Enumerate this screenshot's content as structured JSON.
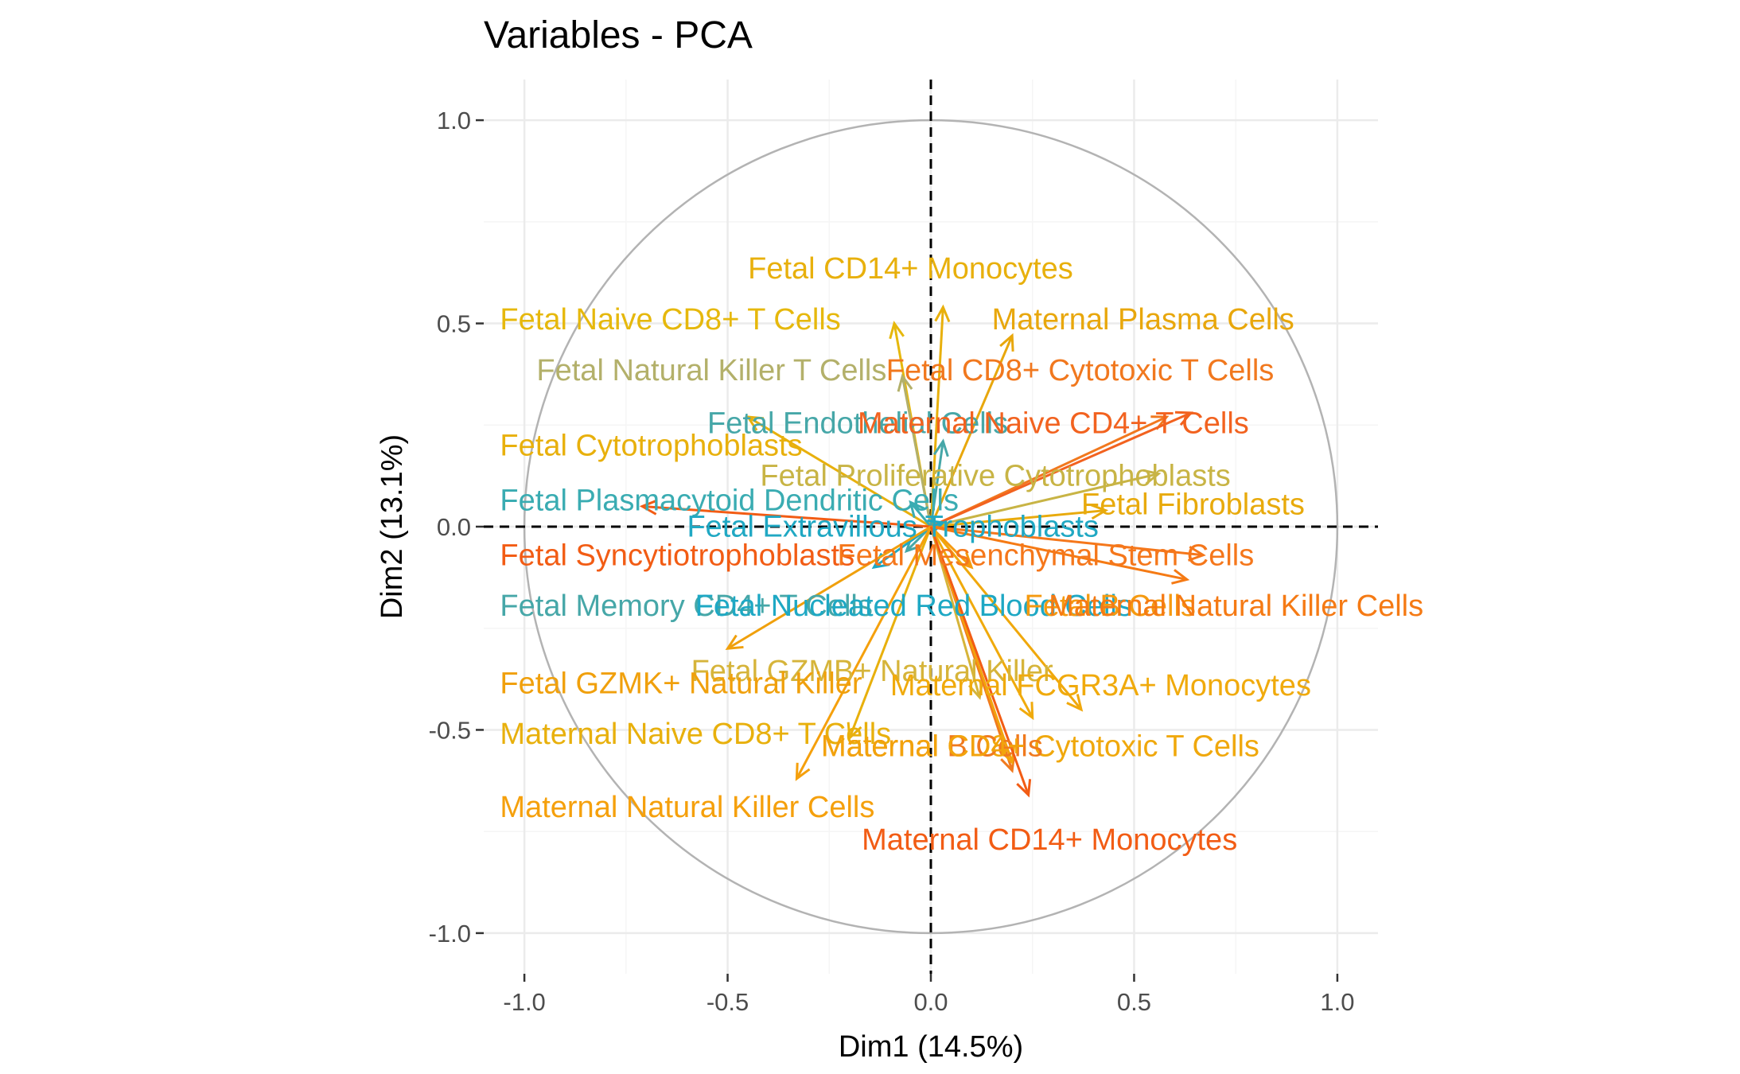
{
  "chart_data": {
    "type": "scatter",
    "title": "Variables - PCA",
    "xlabel": "Dim1 (14.5%)",
    "ylabel": "Dim2 (13.1%)",
    "xlim": [
      -1.1,
      1.1
    ],
    "ylim": [
      -1.1,
      1.1
    ],
    "x_ticks": [
      -1.0,
      -0.5,
      0.0,
      0.5,
      1.0
    ],
    "y_ticks": [
      -1.0,
      -0.5,
      0.0,
      0.5,
      1.0
    ],
    "x_tick_labels": [
      "-1.0",
      "-0.5",
      "0.0",
      "0.5",
      "1.0"
    ],
    "y_tick_labels": [
      "-1.0",
      "-0.5",
      "0.0",
      "0.5",
      "1.0"
    ],
    "grid": true,
    "unit_circle": true,
    "reference_lines": "dashed at x=0 and y=0",
    "variables": [
      {
        "name": "Fetal CD14+ Monocytes",
        "x": 0.03,
        "y": 0.54,
        "color": "#E8B00C"
      },
      {
        "name": "Fetal Naive CD8+ T Cells",
        "x": -0.09,
        "y": 0.5,
        "color": "#E6B80C"
      },
      {
        "name": "Maternal Plasma Cells",
        "x": 0.2,
        "y": 0.47,
        "color": "#E8A70C"
      },
      {
        "name": "Fetal Natural Killer T Cells",
        "x": -0.07,
        "y": 0.37,
        "color": "#B3B06A"
      },
      {
        "name": "Fetal CD8+ Cytotoxic T Cells",
        "x": 0.58,
        "y": 0.27,
        "color": "#F1781E"
      },
      {
        "name": "Fetal Endothelial Cells",
        "x": 0.03,
        "y": 0.21,
        "color": "#46A7A8"
      },
      {
        "name": "Maternal Naive CD4+ T Cells",
        "x": 0.64,
        "y": 0.28,
        "color": "#F2621F"
      },
      {
        "name": "Fetal Cytotrophoblasts",
        "x": -0.45,
        "y": 0.27,
        "color": "#E8B00C"
      },
      {
        "name": "Fetal Proliferative Cytotrophoblasts",
        "x": 0.56,
        "y": 0.13,
        "color": "#C8B445"
      },
      {
        "name": "Fetal Fibroblasts",
        "x": 0.43,
        "y": 0.04,
        "color": "#E8AA0C"
      },
      {
        "name": "Fetal Plasmacytoid Dendritic Cells",
        "x": -0.05,
        "y": 0.06,
        "color": "#3AACB2"
      },
      {
        "name": "Fetal Extravillous Trophoblasts",
        "x": 0.03,
        "y": 0.01,
        "color": "#20A8C3"
      },
      {
        "name": "Fetal Syncytiotrophoblasts",
        "x": -0.71,
        "y": 0.05,
        "color": "#F25C14"
      },
      {
        "name": "Fetal Mesenchymal Stem Cells",
        "x": 0.67,
        "y": -0.07,
        "color": "#F5771B"
      },
      {
        "name": "Fetal Memory CD4+ T Cells",
        "x": -0.06,
        "y": -0.06,
        "color": "#46A7A8"
      },
      {
        "name": "Fetal Nucleated Red Blood Cells",
        "x": -0.14,
        "y": -0.1,
        "color": "#1EA8C4"
      },
      {
        "name": "Fetal B Cells",
        "x": 0.1,
        "y": -0.1,
        "color": "#F59A10"
      },
      {
        "name": "Maternal Natural Killer Cells",
        "x": 0.63,
        "y": -0.13,
        "color": "#F57A14"
      },
      {
        "name": "Fetal GZMB+ Natural Killer",
        "x": 0.12,
        "y": -0.42,
        "color": "#D6B43A"
      },
      {
        "name": "Fetal GZMK+ Natural Killer",
        "x": -0.5,
        "y": -0.3,
        "color": "#F0A00C"
      },
      {
        "name": "Maternal FCGR3A+ Monocytes",
        "x": 0.25,
        "y": -0.47,
        "color": "#F0AA0C"
      },
      {
        "name": "Maternal Naive CD8+ T Cells",
        "x": -0.2,
        "y": -0.52,
        "color": "#E8B00C"
      },
      {
        "name": "Maternal CD8+ Cytotoxic T Cells",
        "x": 0.37,
        "y": -0.45,
        "color": "#F0A80C"
      },
      {
        "name": "Maternal B Cells",
        "x": 0.2,
        "y": -0.6,
        "color": "#F07A1E"
      },
      {
        "name": "Maternal CD4+",
        "x": 0.2,
        "y": -0.58,
        "color": "#F2A30C"
      },
      {
        "name": "Maternal Natural Killer Cells",
        "x": -0.33,
        "y": -0.62,
        "color": "#F5A00C"
      },
      {
        "name": "Maternal CD14+ Monocytes",
        "x": 0.24,
        "y": -0.66,
        "color": "#F25C14"
      }
    ],
    "labels": [
      {
        "text": "Fetal CD14+ Monocytes",
        "x": -0.05,
        "y": 0.63,
        "anchor": "middle",
        "color": "#E8B00C"
      },
      {
        "text": "Fetal Naive CD8+ T Cells",
        "x": -1.06,
        "y": 0.505,
        "anchor": "start",
        "color": "#E6B80C"
      },
      {
        "text": "Maternal Plasma Cells",
        "x": 0.15,
        "y": 0.505,
        "anchor": "start",
        "color": "#E8A70C"
      },
      {
        "text": "Fetal Natural Killer T Cells",
        "x": -0.97,
        "y": 0.38,
        "anchor": "start",
        "color": "#B3B06A"
      },
      {
        "text": "Fetal CD8+ Cytotoxic T Cells",
        "x": -0.11,
        "y": 0.38,
        "anchor": "start",
        "color": "#F1781E"
      },
      {
        "text": "Fetal Endothelial Cells",
        "x": -0.55,
        "y": 0.25,
        "anchor": "start",
        "color": "#46A7A8"
      },
      {
        "text": "Maternal Naive CD4+ T Cells",
        "x": -0.18,
        "y": 0.25,
        "anchor": "start",
        "color": "#F2621F"
      },
      {
        "text": "Fetal Cytotrophoblasts",
        "x": -1.06,
        "y": 0.195,
        "anchor": "start",
        "color": "#E8B00C"
      },
      {
        "text": "Fetal Proliferative Cytotrophoblasts",
        "x": -0.42,
        "y": 0.12,
        "anchor": "start",
        "color": "#C8B445"
      },
      {
        "text": "Fetal Fibroblasts",
        "x": 0.37,
        "y": 0.05,
        "anchor": "start",
        "color": "#E8AA0C"
      },
      {
        "text": "Fetal Plasmacytoid Dendritic Cells",
        "x": -1.06,
        "y": 0.06,
        "anchor": "start",
        "color": "#3AACB2"
      },
      {
        "text": "Fetal Extravillous Trophoblasts",
        "x": -0.6,
        "y": -0.005,
        "anchor": "start",
        "color": "#20A8C3"
      },
      {
        "text": "Fetal Syncytiotrophoblasts",
        "x": -1.06,
        "y": -0.075,
        "anchor": "start",
        "color": "#F25C14"
      },
      {
        "text": "Fetal Mesenchymal Stem Cells",
        "x": -0.23,
        "y": -0.075,
        "anchor": "start",
        "color": "#F5771B"
      },
      {
        "text": "Fetal Memory CD4+ T Cells",
        "x": -1.06,
        "y": -0.2,
        "anchor": "start",
        "color": "#46A7A8"
      },
      {
        "text": "Fetal Nucleated Red Blood Cells",
        "x": -0.58,
        "y": -0.2,
        "anchor": "start",
        "color": "#1EA8C4"
      },
      {
        "text": "Fetal B Cells",
        "x": 0.23,
        "y": -0.2,
        "anchor": "start",
        "color": "#F59A10"
      },
      {
        "text": "Maternal Natural Killer Cells",
        "x": 0.29,
        "y": -0.2,
        "anchor": "start",
        "color": "#F57A14"
      },
      {
        "text": "Fetal GZMB+ Natural Killer",
        "x": -0.59,
        "y": -0.36,
        "anchor": "start",
        "color": "#D6B43A"
      },
      {
        "text": "Fetal GZMK+ Natural Killer",
        "x": -1.06,
        "y": -0.39,
        "anchor": "start",
        "color": "#F0A00C"
      },
      {
        "text": "Maternal FCGR3A+ Monocytes",
        "x": -0.1,
        "y": -0.395,
        "anchor": "start",
        "color": "#F0AA0C"
      },
      {
        "text": "Maternal Naive CD8+ T Cells",
        "x": -1.06,
        "y": -0.515,
        "anchor": "start",
        "color": "#E8B00C"
      },
      {
        "text": "Maternal CD8+ Cytotoxic T Cells",
        "x": -0.27,
        "y": -0.545,
        "anchor": "start",
        "color": "#F0A80C"
      },
      {
        "text": "Maternal B Cells",
        "x": -0.27,
        "y": -0.545,
        "anchor": "start",
        "color": "#F07A1E"
      },
      {
        "text": "Maternal CD4+",
        "x": -0.27,
        "y": -0.545,
        "anchor": "start",
        "color": "#F2A30C"
      },
      {
        "text": "Maternal Natural Killer Cells",
        "x": -1.06,
        "y": -0.695,
        "anchor": "start",
        "color": "#F5A00C"
      },
      {
        "text": "Maternal CD14+ Monocytes",
        "x": -0.17,
        "y": -0.775,
        "anchor": "start",
        "color": "#F25C14"
      }
    ],
    "colors": {
      "circle": "#B3B3B3",
      "grid_major": "#EBEBEB",
      "grid_minor": "#F5F5F5",
      "reference_line": "#000000"
    }
  }
}
